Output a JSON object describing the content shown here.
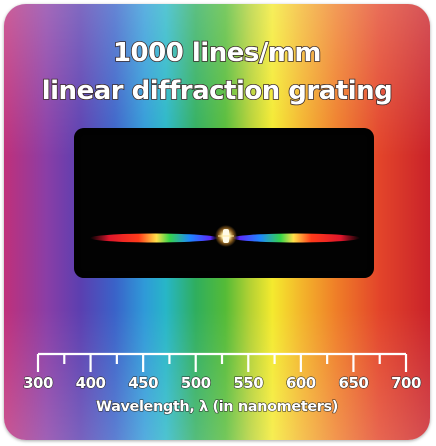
{
  "title": {
    "line1": "1000 lines/mm",
    "line2": "linear diffraction grating"
  },
  "scale": {
    "ticks": [
      "300",
      "400",
      "450",
      "500",
      "550",
      "600",
      "650",
      "700"
    ],
    "axis_label": "Wavelength, λ (in nanometers)"
  },
  "colors": {
    "window": "#020202",
    "text": "#ffffff",
    "text_outline": "#3a2a2a"
  },
  "icons": {
    "center": "light-source-glow-icon",
    "left": "spectrum-band-left",
    "right": "spectrum-band-right"
  }
}
